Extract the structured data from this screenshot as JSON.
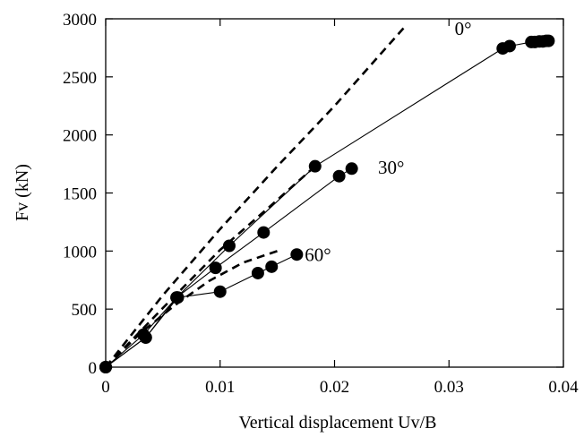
{
  "chart_data": {
    "type": "scatter",
    "xlabel": "Vertical displacement Uv/B",
    "ylabel": "Fv (kN)",
    "xlim": [
      0,
      0.04
    ],
    "ylim": [
      0,
      3000
    ],
    "x_ticks": [
      0,
      0.01,
      0.02,
      0.03,
      0.04
    ],
    "x_tick_labels": [
      "0",
      "0.01",
      "0.02",
      "0.03",
      "0.04"
    ],
    "y_ticks": [
      0,
      500,
      1000,
      1500,
      2000,
      2500,
      3000
    ],
    "y_tick_labels": [
      "0",
      "500",
      "1000",
      "1500",
      "2000",
      "2500",
      "3000"
    ],
    "grid": false,
    "annotations": [
      {
        "text": "0°",
        "x": 0.0305,
        "y": 2860
      },
      {
        "text": "30°",
        "x": 0.0238,
        "y": 1665
      },
      {
        "text": "60°",
        "x": 0.0174,
        "y": 915
      }
    ],
    "series": [
      {
        "style": "solid-markers",
        "x": [
          0,
          0.0033,
          0.0062,
          0.0108,
          0.0183,
          0.0347,
          0.0353,
          0.0372,
          0.0375,
          0.0379,
          0.0382,
          0.0385,
          0.0387
        ],
        "y": [
          0,
          280,
          600,
          1045,
          1730,
          2745,
          2765,
          2800,
          2800,
          2805,
          2805,
          2810,
          2810
        ]
      },
      {
        "style": "solid-markers",
        "x": [
          0,
          0.0035,
          0.0062,
          0.0096,
          0.0138,
          0.0204,
          0.0215
        ],
        "y": [
          0,
          255,
          600,
          855,
          1160,
          1645,
          1710
        ]
      },
      {
        "style": "solid-markers",
        "x": [
          0,
          0.0035,
          0.0063,
          0.01,
          0.0133,
          0.0145,
          0.0167
        ],
        "y": [
          0,
          255,
          600,
          650,
          810,
          865,
          970
        ]
      },
      {
        "style": "dashed",
        "x": [
          0,
          0.005,
          0.01,
          0.015,
          0.02,
          0.0263
        ],
        "y": [
          0,
          620,
          1190,
          1730,
          2250,
          2950
        ]
      },
      {
        "style": "dashed",
        "x": [
          0,
          0.005,
          0.01,
          0.0143,
          0.0183
        ],
        "y": [
          0,
          510,
          1010,
          1380,
          1730
        ]
      },
      {
        "style": "dashed",
        "x": [
          0,
          0.003,
          0.006,
          0.009,
          0.012,
          0.015
        ],
        "y": [
          0,
          290,
          530,
          740,
          900,
          1000
        ]
      }
    ]
  }
}
